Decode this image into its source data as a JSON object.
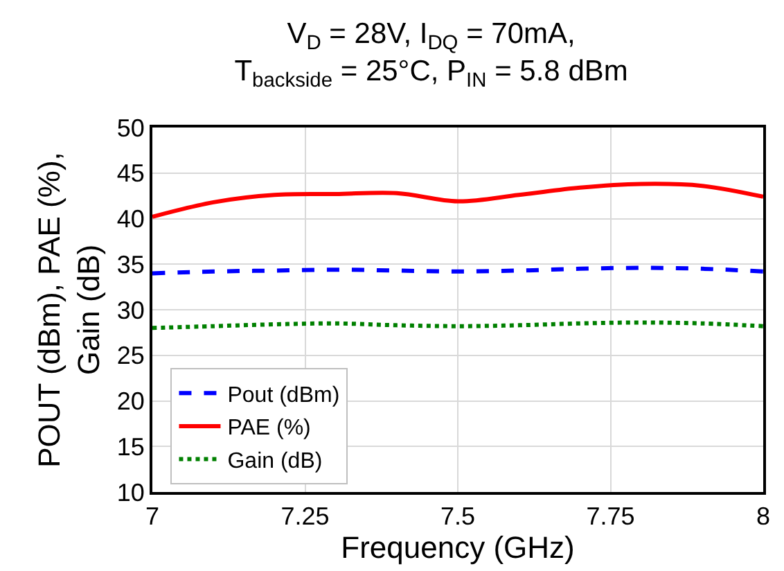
{
  "chart_data": {
    "type": "line",
    "title": "V$_{D}$ = 28V, I$_{DQ}$ = 70mA,\nT$_{backside}$ = 25°C, P$_{IN}$ = 5.8 dBm",
    "xlabel": "Frequency (GHz)",
    "ylabel": "POUT (dBm), PAE (%),\nGain (dB)",
    "x": [
      7,
      7.1,
      7.2,
      7.3,
      7.4,
      7.5,
      7.6,
      7.7,
      7.8,
      7.9,
      8
    ],
    "series": [
      {
        "name": "Pout (dBm)",
        "color": "#0000ff",
        "line_style": "dashed",
        "values": [
          34.0,
          34.2,
          34.3,
          34.4,
          34.3,
          34.2,
          34.3,
          34.5,
          34.6,
          34.5,
          34.2
        ]
      },
      {
        "name": "PAE (%)",
        "color": "#ff0000",
        "line_style": "solid",
        "values": [
          40.2,
          41.8,
          42.6,
          42.7,
          42.8,
          41.9,
          42.6,
          43.4,
          43.8,
          43.6,
          42.4
        ]
      },
      {
        "name": "Gain (dB)",
        "color": "#008000",
        "line_style": "dotted",
        "values": [
          28.0,
          28.2,
          28.4,
          28.5,
          28.3,
          28.2,
          28.3,
          28.5,
          28.6,
          28.5,
          28.2
        ]
      }
    ],
    "xlim": [
      7,
      8
    ],
    "xticks": [
      7,
      7.25,
      7.5,
      7.75,
      8
    ],
    "ylim": [
      10,
      50
    ],
    "yticks": [
      10,
      15,
      20,
      25,
      30,
      35,
      40,
      45,
      50
    ],
    "grid": true,
    "legend": "bottom left",
    "marker": "none"
  }
}
